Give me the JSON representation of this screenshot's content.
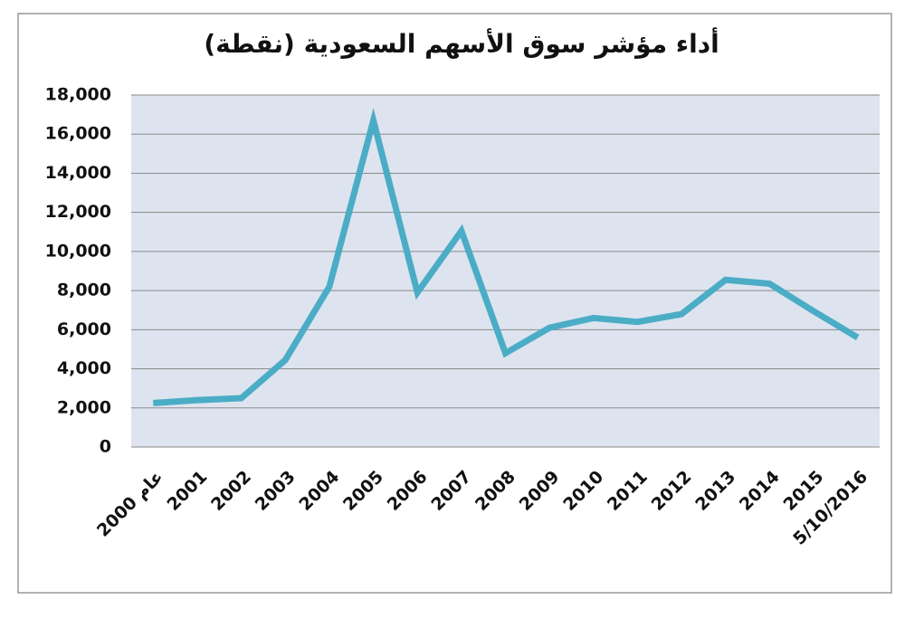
{
  "chart_data": {
    "type": "line",
    "title": "أداء مؤشر سوق الأسهم السعودية (نقطة)",
    "categories": [
      "عام 2000",
      "2001",
      "2002",
      "2003",
      "2004",
      "2005",
      "2006",
      "2007",
      "2008",
      "2009",
      "2010",
      "2011",
      "2012",
      "2013",
      "2014",
      "2015",
      "5/10/2016"
    ],
    "values": [
      2250,
      2400,
      2500,
      4450,
      8200,
      16700,
      7900,
      11050,
      4800,
      6100,
      6600,
      6400,
      6800,
      8550,
      8350,
      6950,
      5600
    ],
    "color": "#4bacc6",
    "ylim": [
      0,
      18000
    ],
    "yticks": [
      0,
      {
        "value": 2000,
        "label": "2,000"
      },
      {
        "value": 4000,
        "label": "4,000"
      },
      {
        "value": 6000,
        "label": "6,000"
      },
      {
        "value": 8000,
        "label": "8,000"
      },
      {
        "value": 10000,
        "label": "10,000"
      },
      {
        "value": 12000,
        "label": "12,000"
      },
      {
        "value": 14000,
        "label": "14,000"
      },
      {
        "value": 16000,
        "label": "16,000"
      },
      {
        "value": 18000,
        "label": "18,000"
      }
    ],
    "grid": true
  }
}
